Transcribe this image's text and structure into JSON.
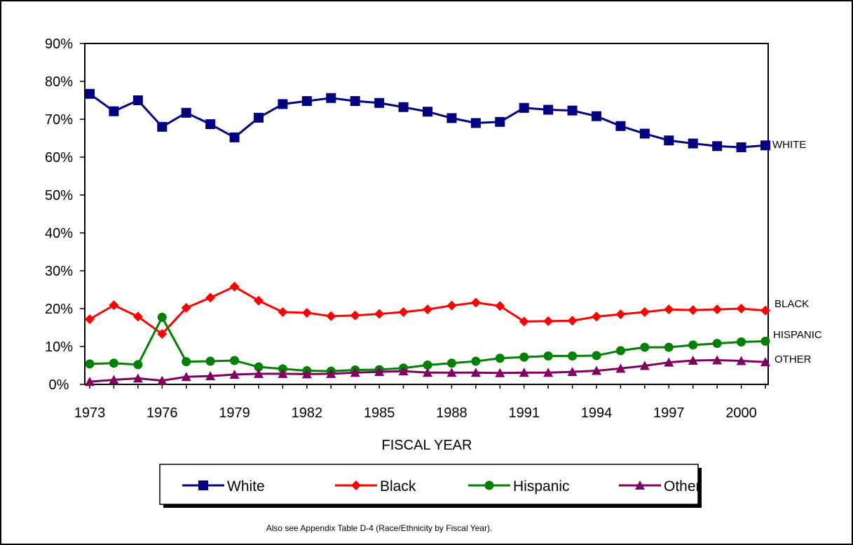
{
  "chart_data": {
    "type": "line",
    "title": "",
    "xlabel": "FISCAL YEAR",
    "ylabel": "",
    "ylim": [
      0,
      90
    ],
    "xlim": [
      1973,
      2001
    ],
    "y_ticks": [
      "0%",
      "10%",
      "20%",
      "30%",
      "40%",
      "50%",
      "60%",
      "70%",
      "80%",
      "90%"
    ],
    "x_ticks": [
      "1973",
      "1976",
      "1979",
      "1982",
      "1985",
      "1988",
      "1991",
      "1994",
      "1997",
      "2000"
    ],
    "grid": false,
    "legend_position": "bottom",
    "x": [
      1973,
      1974,
      1975,
      1976,
      1977,
      1978,
      1979,
      1980,
      1981,
      1982,
      1983,
      1984,
      1985,
      1986,
      1987,
      1988,
      1989,
      1990,
      1991,
      1992,
      1993,
      1994,
      1995,
      1996,
      1997,
      1998,
      1999,
      2000,
      2001
    ],
    "series": [
      {
        "name": "White",
        "end_label": "WHITE",
        "color": "#000080",
        "marker": "square",
        "values": [
          76.7,
          72.1,
          75.0,
          68.0,
          71.7,
          68.7,
          65.2,
          70.4,
          74.0,
          74.8,
          75.6,
          74.8,
          74.3,
          73.2,
          72.0,
          70.3,
          69.0,
          69.3,
          73.0,
          72.5,
          72.3,
          70.8,
          68.2,
          66.2,
          64.4,
          63.6,
          62.9,
          62.6,
          63.1
        ]
      },
      {
        "name": "Black",
        "end_label": "BLACK",
        "color": "#ff0000",
        "marker": "diamond",
        "values": [
          17.2,
          20.9,
          17.9,
          13.3,
          20.2,
          22.9,
          25.8,
          22.1,
          19.1,
          18.9,
          18.0,
          18.2,
          18.6,
          19.1,
          19.8,
          20.8,
          21.6,
          20.7,
          16.6,
          16.7,
          16.8,
          17.9,
          18.5,
          19.1,
          19.8,
          19.6,
          19.8,
          20.0,
          19.5
        ]
      },
      {
        "name": "Hispanic",
        "end_label": "HISPANIC",
        "color": "#008000",
        "marker": "circle",
        "values": [
          5.4,
          5.6,
          5.2,
          17.7,
          6.0,
          6.1,
          6.3,
          4.6,
          4.1,
          3.6,
          3.5,
          3.8,
          3.9,
          4.3,
          5.1,
          5.6,
          6.1,
          6.9,
          7.2,
          7.5,
          7.5,
          7.6,
          8.9,
          9.8,
          9.8,
          10.4,
          10.8,
          11.2,
          11.4
        ]
      },
      {
        "name": "Other",
        "end_label": "OTHER",
        "color": "#800060",
        "marker": "triangle",
        "values": [
          0.7,
          1.2,
          1.6,
          1.0,
          2.0,
          2.2,
          2.6,
          2.8,
          2.8,
          2.7,
          2.8,
          3.1,
          3.3,
          3.5,
          3.1,
          3.1,
          3.1,
          3.0,
          3.1,
          3.1,
          3.3,
          3.6,
          4.2,
          4.9,
          5.8,
          6.3,
          6.4,
          6.2,
          5.9
        ]
      }
    ]
  },
  "footnote": "Also see Appendix Table D-4 (Race/Ethnicity by Fiscal Year)."
}
